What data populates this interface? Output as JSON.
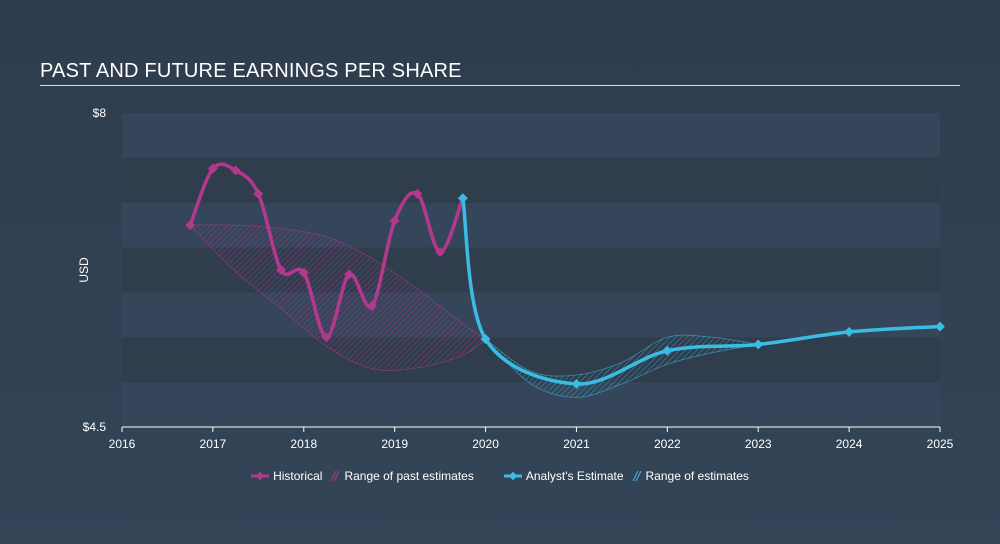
{
  "title": "PAST AND FUTURE EARNINGS PER SHARE",
  "legend": {
    "historical": "Historical",
    "past_range": "Range of past estimates",
    "analyst": "Analyst's Estimate",
    "future_range": "Range of estimates"
  },
  "colors": {
    "historical": "#b5388f",
    "estimate": "#3bbde3",
    "band_dark": "#2f3d4d",
    "band_light": "#35465a"
  },
  "chart_data": {
    "type": "line",
    "ylabel": "USD",
    "xlim": [
      2016,
      2025
    ],
    "ylim": [
      4.5,
      8
    ],
    "y_tick_labels": [
      {
        "value": 8,
        "label": "$8"
      },
      {
        "value": 4.5,
        "label": "$4.5"
      }
    ],
    "x_ticks": [
      2016,
      2017,
      2018,
      2019,
      2020,
      2021,
      2022,
      2023,
      2024,
      2025
    ],
    "series": [
      {
        "name": "Historical",
        "x": [
          2016.75,
          2017.0,
          2017.25,
          2017.5,
          2017.75,
          2018.0,
          2018.25,
          2018.5,
          2018.75,
          2019.0,
          2019.25,
          2019.5,
          2019.75
        ],
        "y": [
          6.75,
          7.38,
          7.36,
          7.1,
          6.25,
          6.22,
          5.5,
          6.2,
          5.85,
          6.8,
          7.1,
          6.45,
          7.05
        ]
      },
      {
        "name": "Analyst's Estimate",
        "x": [
          2019.75,
          2020.0,
          2021.0,
          2022.0,
          2023.0,
          2024.0,
          2025.0
        ],
        "y": [
          7.05,
          5.48,
          4.98,
          5.35,
          5.42,
          5.56,
          5.62
        ]
      }
    ],
    "past_range": {
      "x": [
        2016.75,
        2017.25,
        2017.75,
        2018.25,
        2018.75,
        2019.25,
        2019.75,
        2020.0
      ],
      "high": [
        6.75,
        6.75,
        6.71,
        6.62,
        6.38,
        6.04,
        5.65,
        5.48
      ],
      "low": [
        6.75,
        6.23,
        5.82,
        5.4,
        5.15,
        5.16,
        5.3,
        5.48
      ]
    },
    "future_range": {
      "x": [
        2020.0,
        2020.5,
        2021.0,
        2021.5,
        2022.0,
        2022.5,
        2023.0
      ],
      "high": [
        5.48,
        5.12,
        5.08,
        5.22,
        5.5,
        5.5,
        5.42
      ],
      "low": [
        5.48,
        4.98,
        4.83,
        4.98,
        5.2,
        5.33,
        5.42
      ]
    }
  }
}
